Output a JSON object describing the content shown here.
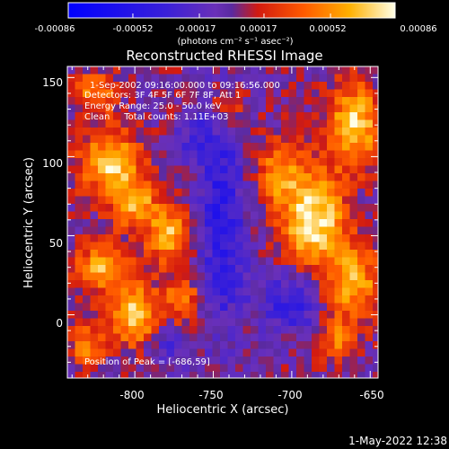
{
  "chart_data": {
    "type": "heatmap",
    "title": "Reconstructed RHESSI Image",
    "xlabel": "Heliocentric X (arcsec)",
    "ylabel": "Heliocentric Y (arcsec)",
    "xlim": [
      -843,
      -645
    ],
    "ylim": [
      -40,
      157
    ],
    "x_ticks": [
      "-800",
      "-750",
      "-700",
      "-650"
    ],
    "x_tick_values": [
      -800,
      -750,
      -700,
      -650
    ],
    "y_ticks": [
      "0",
      "50",
      "100",
      "150"
    ],
    "y_tick_values": [
      0,
      50,
      100,
      150
    ],
    "colorbar": {
      "range": [
        -0.00086,
        0.00086
      ],
      "tick_labels": [
        "-0.00086",
        "-0.00052",
        "-0.00017",
        "0.00017",
        "0.00052",
        "0.00086"
      ],
      "tick_values": [
        -0.00086,
        -0.00052,
        -0.00017,
        0.00017,
        0.00052,
        0.00086
      ],
      "units": "(photons cm⁻² s⁻¹ asec⁻²)"
    },
    "annotations": [
      "1-Sep-2002 09:16:00.000 to 09:16:56.000",
      "Detectors: 3F 4F 5F 6F 7F 8F, Att 1",
      "Energy Range: 25.0 - 50.0 keV",
      "Clean     Total counts: 1.11E+03"
    ],
    "peak_label": "Position of Peak = [-686,59]",
    "peak": [
      -686,
      59
    ],
    "footer_text": "1-May-2022 12:38"
  },
  "colors": {
    "background": "#000000",
    "axes": "#ffffff",
    "colormap": [
      "#0000ff",
      "#5a2bd6",
      "#7a3fb0",
      "#ff2a00",
      "#ff8a00",
      "#ffffff"
    ]
  }
}
